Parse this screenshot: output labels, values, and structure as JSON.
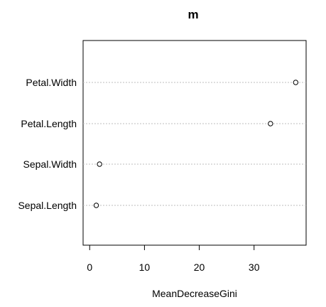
{
  "chart_data": {
    "type": "scatter",
    "title": "m",
    "xlabel": "MeanDecreaseGini",
    "ylabel": "",
    "categories": [
      "Petal.Width",
      "Petal.Length",
      "Sepal.Width",
      "Sepal.Length"
    ],
    "values": [
      37.6,
      33.0,
      1.8,
      1.2
    ],
    "xlim": [
      -1.2,
      39.5
    ],
    "xticks": [
      "0",
      "10",
      "20",
      "30"
    ],
    "grid": "dotted horizontal"
  }
}
